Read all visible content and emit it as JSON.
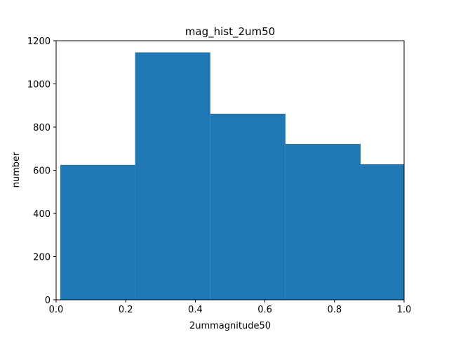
{
  "chart_data": {
    "type": "bar",
    "title": "mag_hist_2um50",
    "xlabel": "2ummagnitude50",
    "ylabel": "number",
    "xlim": [
      0.0,
      1.0
    ],
    "ylim": [
      0,
      1200
    ],
    "xticks": [
      "0.0",
      "0.2",
      "0.4",
      "0.6",
      "0.8",
      "1.0"
    ],
    "yticks": [
      "0",
      "200",
      "400",
      "600",
      "800",
      "1000",
      "1200"
    ],
    "bins": [
      {
        "x0": 0.012,
        "x1": 0.227,
        "value": 625
      },
      {
        "x0": 0.227,
        "x1": 0.443,
        "value": 1146
      },
      {
        "x0": 0.443,
        "x1": 0.659,
        "value": 862
      },
      {
        "x0": 0.659,
        "x1": 0.875,
        "value": 722
      },
      {
        "x0": 0.875,
        "x1": 1.09,
        "value": 628
      }
    ],
    "grid": false,
    "bar_color": "#1f77b4"
  }
}
